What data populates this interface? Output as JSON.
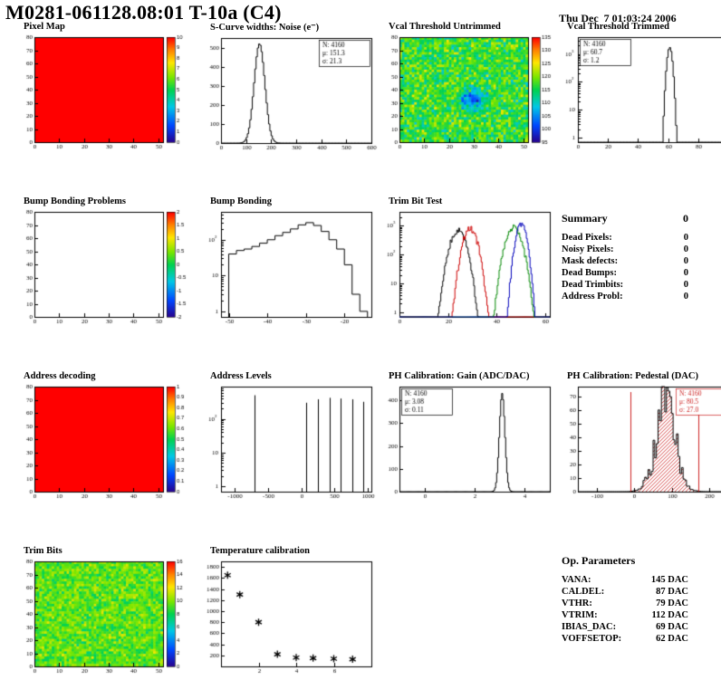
{
  "header": {
    "title": "M0281-061128.08:01 T-10a (C4)",
    "datetime": "Thu Dec  7 01:03:24 2006"
  },
  "summary": {
    "title": "Summary",
    "total": "0",
    "rows": [
      {
        "label": "Dead Pixels:",
        "value": "0"
      },
      {
        "label": "Noisy Pixels:",
        "value": "0"
      },
      {
        "label": "Mask defects:",
        "value": "0"
      },
      {
        "label": "Dead Bumps:",
        "value": "0"
      },
      {
        "label": "Dead Trimbits:",
        "value": "0"
      },
      {
        "label": "Address Probl:",
        "value": "0"
      }
    ]
  },
  "op_parameters": {
    "title": "Op. Parameters",
    "rows": [
      {
        "label": "VANA:",
        "value": "145 DAC"
      },
      {
        "label": "CALDEL:",
        "value": "87 DAC"
      },
      {
        "label": "VTHR:",
        "value": "79 DAC"
      },
      {
        "label": "VTRIM:",
        "value": "112 DAC"
      },
      {
        "label": "IBIAS_DAC:",
        "value": "69 DAC"
      },
      {
        "label": "VOFFSETOP:",
        "value": "62 DAC"
      }
    ]
  },
  "chart_data": [
    {
      "id": "pixel-map",
      "title": "Pixel Map",
      "type": "heatmap",
      "xlim": [
        0,
        52
      ],
      "ylim": [
        0,
        80
      ],
      "xticks": [
        0,
        10,
        20,
        30,
        40,
        50
      ],
      "yticks": [
        0,
        10,
        20,
        30,
        40,
        50,
        60,
        70,
        80
      ],
      "zrange": [
        0,
        10
      ],
      "colorbar_ticks": [
        0,
        1,
        2,
        3,
        4,
        5,
        6,
        7,
        8,
        9,
        10
      ],
      "values": {
        "mode": "uniform",
        "value": 10
      },
      "description": "all 4160 pixels responding (uniform red map)"
    },
    {
      "id": "scurve-noise",
      "title": "S-Curve widths: Noise (e⁻)",
      "type": "hist",
      "xlim": [
        0,
        600
      ],
      "ylim": [
        0,
        550
      ],
      "bins": 120,
      "xticks": [
        0,
        100,
        200,
        300,
        400,
        500,
        600
      ],
      "yticks": [
        0,
        100,
        200,
        300,
        400,
        500
      ],
      "gauss": {
        "mean": 151.3,
        "sigma": 21.3,
        "peak": 520
      },
      "stats": {
        "n": "4160",
        "mean": "151.3",
        "sigma": "21.3",
        "pos": "right",
        "color": "#000000"
      }
    },
    {
      "id": "vcal-threshold-untrimmed",
      "title": "Vcal Threshold Untrimmed",
      "type": "heatmap",
      "xlim": [
        0,
        52
      ],
      "ylim": [
        0,
        80
      ],
      "xticks": [
        0,
        10,
        20,
        30,
        40,
        50
      ],
      "yticks": [
        0,
        10,
        20,
        30,
        40,
        50,
        60,
        70,
        80
      ],
      "zrange": [
        95,
        135
      ],
      "colorbar_ticks": [
        95,
        100,
        105,
        110,
        115,
        120,
        125,
        130,
        135
      ],
      "values": {
        "mode": "noise",
        "mean": 117,
        "spread": 9,
        "spots": [
          {
            "x": 30,
            "y": 32,
            "r": 8,
            "dv": -16
          }
        ]
      },
      "description": "noisy threshold map ~105-130 with low-threshold (blue) region near col 30 row 32"
    },
    {
      "id": "vcal-threshold-trimmed",
      "title": "Vcal Threshold Trimmed",
      "type": "hist",
      "logy": true,
      "xlim": [
        0,
        100
      ],
      "ylim": [
        0.7,
        4000
      ],
      "bins": 120,
      "xticks": [
        0,
        20,
        40,
        60,
        80,
        100
      ],
      "gauss": {
        "mean": 60.7,
        "sigma": 1.2,
        "peak": 1700
      },
      "stats": {
        "n": "4160",
        "mean": "60.7",
        "sigma": "1.2",
        "pos": "left",
        "color": "#000000"
      }
    },
    {
      "id": "bump-bonding-problems",
      "title": "Bump Bonding Problems",
      "type": "heatmap",
      "xlim": [
        0,
        52
      ],
      "ylim": [
        0,
        80
      ],
      "xticks": [
        0,
        10,
        20,
        30,
        40,
        50
      ],
      "yticks": [
        0,
        10,
        20,
        30,
        40,
        50,
        60,
        70,
        80
      ],
      "zrange": [
        -2,
        2
      ],
      "colorbar_ticks": [
        -2,
        -1.5,
        -1,
        -0.5,
        0,
        0.5,
        1,
        1.5,
        2
      ],
      "values": {
        "mode": "empty"
      },
      "description": "no bump bonding problems - empty map"
    },
    {
      "id": "bump-bonding",
      "title": "Bump Bonding",
      "type": "steps",
      "logy": true,
      "xlim": [
        -52,
        -13
      ],
      "ylim": [
        0.7,
        600
      ],
      "xticks": [
        -50,
        -40,
        -30,
        -20
      ],
      "steps": {
        "x": [
          -50,
          -48,
          -46,
          -44,
          -42,
          -40,
          -38,
          -36,
          -34,
          -32,
          -30,
          -28,
          -26,
          -24,
          -22,
          -20,
          -18,
          -16
        ],
        "y": [
          40,
          50,
          55,
          65,
          80,
          100,
          130,
          160,
          200,
          260,
          300,
          250,
          170,
          100,
          55,
          20,
          3,
          1
        ]
      }
    },
    {
      "id": "trim-bit-test",
      "title": "Trim Bit Test",
      "type": "multihist",
      "logy": true,
      "xlim": [
        0,
        62
      ],
      "ylim": [
        0.7,
        3000
      ],
      "xticks": [
        0,
        20,
        40,
        60
      ],
      "series": [
        {
          "color": "#000000",
          "mean": 24,
          "sigma": 2.2,
          "peak": 700
        },
        {
          "color": "#cc0000",
          "mean": 29,
          "sigma": 2.0,
          "peak": 800
        },
        {
          "color": "#008800",
          "mean": 47,
          "sigma": 2.2,
          "peak": 900
        },
        {
          "color": "#0000bb",
          "mean": 50,
          "sigma": 1.5,
          "peak": 1100
        }
      ]
    },
    {
      "id": "address-decoding",
      "title": "Address decoding",
      "type": "heatmap",
      "xlim": [
        0,
        52
      ],
      "ylim": [
        0,
        80
      ],
      "xticks": [
        0,
        10,
        20,
        30,
        40,
        50
      ],
      "yticks": [
        0,
        10,
        20,
        30,
        40,
        50,
        60,
        70,
        80
      ],
      "zrange": [
        0,
        1
      ],
      "colorbar_ticks": [
        0,
        0.1,
        0.2,
        0.3,
        0.4,
        0.5,
        0.6,
        0.7,
        0.8,
        0.9,
        1
      ],
      "values": {
        "mode": "uniform",
        "value": 1
      },
      "description": "all addresses decoded correctly (uniform red map)"
    },
    {
      "id": "address-levels",
      "title": "Address Levels",
      "type": "spikes",
      "logy": true,
      "xlim": [
        -1200,
        1050
      ],
      "ylim": [
        0.7,
        900
      ],
      "xticks": [
        -1000,
        -500,
        0,
        500,
        1000
      ],
      "spikes": {
        "x": [
          -700,
          80,
          250,
          420,
          590,
          760,
          930
        ],
        "h": [
          500,
          300,
          380,
          420,
          400,
          380,
          320
        ]
      }
    },
    {
      "id": "ph-calibration-gain",
      "title": "PH Calibration: Gain (ADC/DAC)",
      "type": "hist",
      "xlim": [
        -1,
        5
      ],
      "ylim": [
        0,
        460
      ],
      "bins": 150,
      "xticks": [
        0,
        2,
        4
      ],
      "yticks": [
        0,
        100,
        200,
        300,
        400
      ],
      "gauss": {
        "mean": 3.08,
        "sigma": 0.11,
        "peak": 430
      },
      "stats": {
        "n": "4160",
        "mean": "3.08",
        "sigma": "0.11",
        "pos": "left",
        "color": "#000000"
      }
    },
    {
      "id": "ph-calibration-pedestal",
      "title": "PH Calibration: Pedestal (DAC)",
      "type": "hist",
      "xlim": [
        -150,
        250
      ],
      "ylim": [
        0,
        77
      ],
      "bins": 90,
      "noise": 0.45,
      "xticks": [
        -100,
        0,
        100,
        200
      ],
      "yticks": [
        0,
        10,
        20,
        30,
        40,
        50,
        60,
        70
      ],
      "gauss": {
        "mean": 80.5,
        "sigma": 27.0,
        "peak": 60
      },
      "fill": "hatch",
      "fill_color": "#cc2222",
      "vlines": [
        {
          "x": -10,
          "color": "#cc2222"
        },
        {
          "x": 170,
          "color": "#cc2222"
        }
      ],
      "stats": {
        "n": "4160",
        "mean": "80.5",
        "sigma": "27.0",
        "pos": "right",
        "color": "#cc2222"
      }
    },
    {
      "id": "trim-bits",
      "title": "Trim Bits",
      "type": "heatmap",
      "xlim": [
        0,
        52
      ],
      "ylim": [
        0,
        80
      ],
      "xticks": [
        0,
        10,
        20,
        30,
        40,
        50
      ],
      "yticks": [
        0,
        10,
        20,
        30,
        40,
        50,
        60,
        70,
        80
      ],
      "zrange": [
        0,
        16
      ],
      "colorbar_ticks": [
        0,
        2,
        4,
        6,
        8,
        10,
        12,
        14,
        16
      ],
      "values": {
        "mode": "noise",
        "mean": 9.5,
        "spread": 2.5
      },
      "description": "trim bit values ~7-13 (green/yellow noisy map)"
    },
    {
      "id": "temperature-calibration",
      "title": "Temperature calibration",
      "type": "scatter",
      "xlim": [
        0,
        8
      ],
      "ylim": [
        0,
        1900
      ],
      "xticks": [
        2,
        4,
        6
      ],
      "yticks": [
        200,
        400,
        600,
        800,
        1000,
        1200,
        1400,
        1600,
        1800
      ],
      "points": {
        "x": [
          0.35,
          1.0,
          2.0,
          3.0,
          4.0,
          4.9,
          6.0,
          7.0
        ],
        "y": [
          1650,
          1300,
          800,
          220,
          160,
          150,
          140,
          130
        ]
      },
      "marker": "asterisk"
    }
  ]
}
